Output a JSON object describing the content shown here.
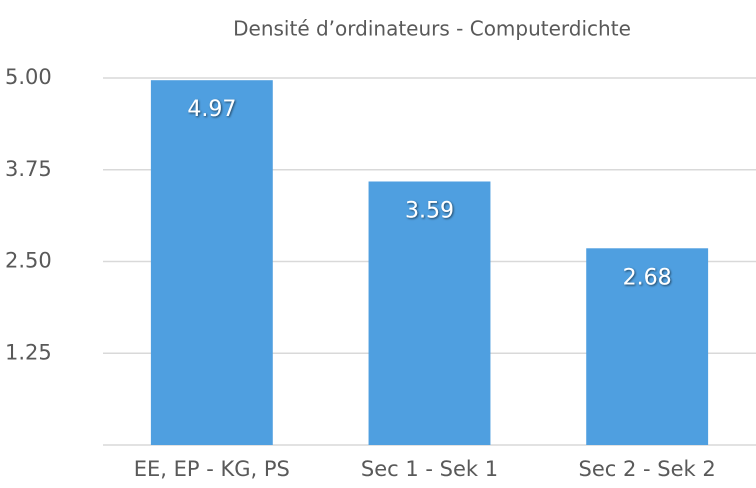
{
  "chart_data": {
    "type": "bar",
    "title": "Densité d’ordinateurs - Computerdichte",
    "categories": [
      "EE, EP - KG, PS",
      "Sec 1 - Sek 1",
      "Sec 2 - Sek 2"
    ],
    "values": [
      4.97,
      3.59,
      2.68
    ],
    "color": "#4f9fe0",
    "ylim": [
      0,
      5
    ],
    "yticks": [
      {
        "value": 1.25,
        "label": "1.25"
      },
      {
        "value": 2.5,
        "label": "2.50"
      },
      3.75,
      {
        "value": 5,
        "label": "5.00"
      }
    ],
    "grid": true
  }
}
